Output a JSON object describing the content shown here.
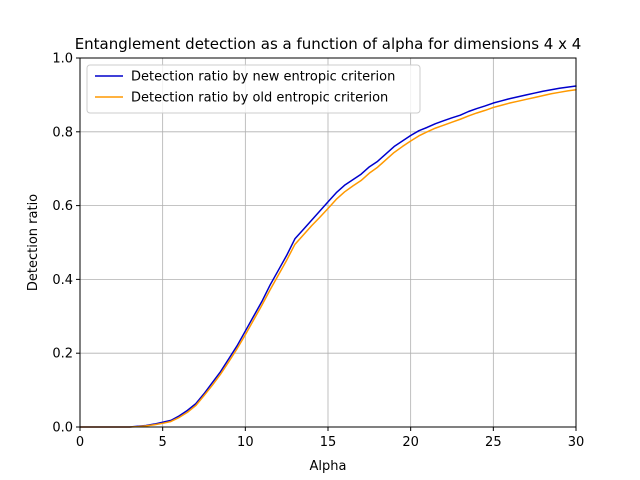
{
  "chart_data": {
    "type": "line",
    "title": "Entanglement detection as a function of alpha for dimensions 4 x 4",
    "xlabel": "Alpha",
    "ylabel": "Detection ratio",
    "xlim": [
      0,
      30
    ],
    "ylim": [
      0,
      1.0
    ],
    "xticks": [
      "0",
      "5",
      "10",
      "15",
      "20",
      "25",
      "30"
    ],
    "yticks": [
      "0.0",
      "0.2",
      "0.4",
      "0.6",
      "0.8",
      "1.0"
    ],
    "grid": true,
    "legend_position": "top-left",
    "x": [
      0,
      1,
      2,
      3,
      3.5,
      4,
      4.5,
      5,
      5.5,
      6,
      6.5,
      7,
      7.5,
      8,
      8.5,
      9,
      9.5,
      10,
      10.5,
      11,
      11.5,
      12,
      12.5,
      13,
      13.5,
      14,
      14.5,
      15,
      15.5,
      16,
      16.5,
      17,
      17.5,
      18,
      18.5,
      19,
      19.5,
      20,
      20.5,
      21,
      21.5,
      22,
      22.5,
      23,
      23.5,
      24,
      24.5,
      25,
      25.5,
      26,
      26.5,
      27,
      27.5,
      28,
      28.5,
      29,
      29.5,
      30
    ],
    "series": [
      {
        "name": "Detection ratio by new entropic criterion",
        "color": "#0000cc",
        "values": [
          0,
          0,
          0,
          0,
          0.002,
          0.004,
          0.008,
          0.013,
          0.018,
          0.03,
          0.045,
          0.063,
          0.09,
          0.12,
          0.15,
          0.185,
          0.22,
          0.26,
          0.3,
          0.34,
          0.385,
          0.425,
          0.465,
          0.51,
          0.535,
          0.56,
          0.585,
          0.61,
          0.635,
          0.655,
          0.67,
          0.685,
          0.705,
          0.72,
          0.74,
          0.76,
          0.775,
          0.79,
          0.803,
          0.812,
          0.822,
          0.83,
          0.838,
          0.845,
          0.855,
          0.863,
          0.87,
          0.878,
          0.884,
          0.89,
          0.895,
          0.9,
          0.905,
          0.91,
          0.914,
          0.918,
          0.921,
          0.924
        ]
      },
      {
        "name": "Detection ratio by old entropic criterion",
        "color": "#ff9900",
        "values": [
          0,
          0,
          0,
          0,
          0.001,
          0.003,
          0.006,
          0.01,
          0.015,
          0.026,
          0.04,
          0.058,
          0.085,
          0.113,
          0.143,
          0.177,
          0.212,
          0.25,
          0.29,
          0.33,
          0.372,
          0.412,
          0.452,
          0.495,
          0.52,
          0.545,
          0.568,
          0.592,
          0.617,
          0.637,
          0.653,
          0.668,
          0.688,
          0.704,
          0.724,
          0.744,
          0.76,
          0.775,
          0.789,
          0.8,
          0.81,
          0.818,
          0.826,
          0.834,
          0.843,
          0.851,
          0.858,
          0.866,
          0.872,
          0.878,
          0.883,
          0.888,
          0.893,
          0.898,
          0.903,
          0.907,
          0.911,
          0.914
        ]
      }
    ]
  }
}
